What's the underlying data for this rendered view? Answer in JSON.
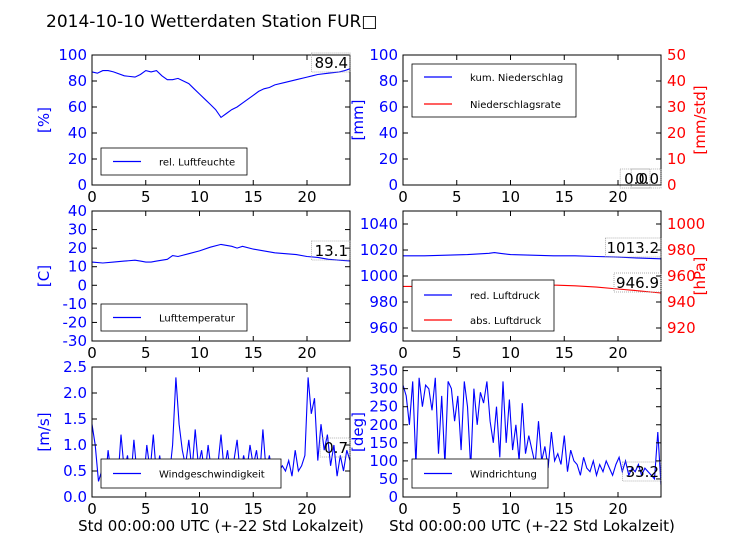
{
  "title": "2014-10-10 Wetterdaten Station FUR□",
  "colors": {
    "primary": "#0000ff",
    "secondary": "#ff0000",
    "axis": "#000000",
    "text": "#000000"
  },
  "chart_data": [
    {
      "id": "humidity",
      "type": "line",
      "xlim": [
        0,
        24
      ],
      "xticks": [
        0,
        5,
        10,
        15,
        20
      ],
      "ylim": [
        0,
        100
      ],
      "yticks": [
        0,
        20,
        40,
        60,
        80,
        100
      ],
      "ylabel": "[%]",
      "readout": "89.4",
      "legend": "bottom-left",
      "series": [
        {
          "name": "rel. Luftfeuchte",
          "color": "#0000ff",
          "x": [
            0,
            0.5,
            1,
            1.5,
            2,
            3,
            4,
            4.5,
            5,
            5.5,
            6,
            6.5,
            7,
            7.5,
            8,
            8.5,
            9,
            9.5,
            10,
            10.5,
            11,
            11.5,
            12,
            12.5,
            13,
            13.5,
            14,
            14.5,
            15,
            15.5,
            16,
            16.5,
            17,
            18,
            19,
            20,
            20.5,
            21,
            22,
            23,
            23.5,
            24
          ],
          "y": [
            87,
            86,
            88,
            88,
            87,
            84,
            83,
            85,
            88,
            87,
            88,
            84,
            81,
            81,
            82,
            80,
            78,
            74,
            70,
            66,
            62,
            58,
            52,
            55,
            58,
            60,
            63,
            66,
            69,
            72,
            74,
            75,
            77,
            79,
            81,
            83,
            84,
            85,
            86,
            87,
            88,
            89.4
          ]
        }
      ]
    },
    {
      "id": "precip",
      "type": "line",
      "xlim": [
        0,
        24
      ],
      "xticks": [
        0,
        5,
        10,
        15,
        20
      ],
      "ylim": [
        0,
        100
      ],
      "yticks": [
        0,
        20,
        40,
        60,
        80,
        100
      ],
      "ylabel": "[mm]",
      "y2lim": [
        0,
        50
      ],
      "y2ticks": [
        0,
        10,
        20,
        30,
        40,
        50
      ],
      "y2label": "[mm/std]",
      "readout": "0.0",
      "readout2": "0.0",
      "legend": "top-left",
      "series": [
        {
          "name": "kum. Niederschlag",
          "color": "#0000ff",
          "axis": "left",
          "x": [
            0,
            24
          ],
          "y": [
            0,
            0
          ]
        },
        {
          "name": "Niederschlagsrate",
          "color": "#ff0000",
          "axis": "right",
          "x": [
            0,
            24
          ],
          "y": [
            0,
            0
          ]
        }
      ]
    },
    {
      "id": "temperature",
      "type": "line",
      "xlim": [
        0,
        24
      ],
      "xticks": [
        0,
        5,
        10,
        15,
        20
      ],
      "ylim": [
        -30,
        40
      ],
      "yticks": [
        -30,
        -20,
        -10,
        0,
        10,
        20,
        30,
        40
      ],
      "ylabel": "[C]",
      "readout": "13.1",
      "legend": "bottom-left",
      "series": [
        {
          "name": "Lufttemperatur",
          "color": "#0000ff",
          "x": [
            0,
            1,
            2,
            3,
            4,
            4.5,
            5,
            5.5,
            6,
            7,
            7.5,
            8,
            9,
            10,
            11,
            12,
            13,
            13.5,
            14,
            15,
            16,
            17,
            18,
            19,
            20,
            21,
            22,
            23,
            24
          ],
          "y": [
            12.5,
            12,
            12.5,
            13,
            13.5,
            13,
            12.5,
            12.5,
            13,
            14,
            16,
            15.5,
            17,
            18.5,
            20.5,
            22,
            21,
            20,
            21,
            19.5,
            18.5,
            17.5,
            17,
            16.5,
            15.5,
            15,
            14,
            13.5,
            13.1
          ]
        }
      ]
    },
    {
      "id": "pressure",
      "type": "line",
      "xlim": [
        0,
        24
      ],
      "xticks": [
        0,
        5,
        10,
        15,
        20
      ],
      "ylim": [
        950,
        1050
      ],
      "yticks": [
        960,
        980,
        1000,
        1020,
        1040
      ],
      "y2lim": [
        910,
        1010
      ],
      "y2ticks": [
        920,
        940,
        960,
        980,
        1000
      ],
      "y2label": "[hPa]",
      "readout": "1013.2",
      "readout2": "946.9",
      "legend": "bottom-left",
      "series": [
        {
          "name": "red. Luftdruck",
          "color": "#0000ff",
          "axis": "left",
          "x": [
            0,
            2,
            4,
            6,
            7,
            8,
            8.5,
            9,
            10,
            12,
            14,
            16,
            18,
            20,
            22,
            24
          ],
          "y": [
            1015.5,
            1015.5,
            1016,
            1016.5,
            1017,
            1017.5,
            1018,
            1017.5,
            1016.5,
            1016,
            1015.5,
            1015.5,
            1015,
            1014.5,
            1013.8,
            1013.2
          ]
        }
      ]
    },
    {
      "id": "wind-speed",
      "type": "line",
      "xlim": [
        0,
        24
      ],
      "xticks": [
        0,
        5,
        10,
        15,
        20
      ],
      "ylim": [
        0,
        2.5
      ],
      "yticks": [
        0.0,
        0.5,
        1.0,
        1.5,
        2.0,
        2.5
      ],
      "ylabel": "[m/s]",
      "xlabel": "Std 00:00:00 UTC (+-22 Std Lokalzeit)",
      "readout": "0.7",
      "legend": "bottom-center",
      "series": [
        {
          "name": "Windgeschwindigkeit",
          "color": "#0000ff",
          "x": [
            0,
            0.3,
            0.6,
            0.9,
            1.2,
            1.5,
            1.8,
            2.1,
            2.4,
            2.7,
            3,
            3.3,
            3.6,
            3.9,
            4.2,
            4.5,
            4.8,
            5.1,
            5.4,
            5.7,
            6,
            6.3,
            6.6,
            6.9,
            7.2,
            7.5,
            7.8,
            8.1,
            8.4,
            8.7,
            9,
            9.3,
            9.6,
            9.9,
            10.2,
            10.5,
            10.8,
            11.1,
            11.4,
            11.7,
            12,
            12.3,
            12.6,
            12.9,
            13.2,
            13.5,
            13.8,
            14.1,
            14.4,
            14.7,
            15,
            15.3,
            15.6,
            15.9,
            16.2,
            16.5,
            16.8,
            17.1,
            17.4,
            17.7,
            18,
            18.3,
            18.6,
            18.9,
            19.2,
            19.5,
            19.8,
            20.1,
            20.4,
            20.7,
            21,
            21.3,
            21.6,
            21.9,
            22.2,
            22.5,
            22.8,
            23.1,
            23.4,
            23.7,
            24
          ],
          "y": [
            1.4,
            1.0,
            0.3,
            0.5,
            0.2,
            0.9,
            0.4,
            0.6,
            0.3,
            1.2,
            0.5,
            0.8,
            0.3,
            1.1,
            0.4,
            0.7,
            0.3,
            1.0,
            0.5,
            1.2,
            0.4,
            0.8,
            0.3,
            0.2,
            0.4,
            1.0,
            2.3,
            1.4,
            0.9,
            0.6,
            1.1,
            0.5,
            1.3,
            0.6,
            0.9,
            0.4,
            1.0,
            0.5,
            0.3,
            0.6,
            1.2,
            0.5,
            0.9,
            0.4,
            0.7,
            1.1,
            0.4,
            0.8,
            0.5,
            1.0,
            0.6,
            0.9,
            0.4,
            1.3,
            0.5,
            0.8,
            0.4,
            0.7,
            0.5,
            0.6,
            0.5,
            0.7,
            0.4,
            0.9,
            0.5,
            0.6,
            0.8,
            2.3,
            1.6,
            1.9,
            0.7,
            1.4,
            0.9,
            1.2,
            0.6,
            1.0,
            0.4,
            0.8,
            0.5,
            0.9,
            0.7
          ]
        }
      ]
    },
    {
      "id": "wind-direction",
      "type": "line",
      "xlim": [
        0,
        24
      ],
      "xticks": [
        0,
        5,
        10,
        15,
        20
      ],
      "ylim": [
        0,
        360
      ],
      "yticks": [
        0,
        50,
        100,
        150,
        200,
        250,
        300,
        350
      ],
      "ylabel": "[deg]",
      "xlabel": "Std 00:00:00 UTC (+-22 Std Lokalzeit)",
      "readout": "33.2",
      "legend": "bottom-left",
      "series": [
        {
          "name": "Windrichtung",
          "color": "#0000ff",
          "x": [
            0,
            0.3,
            0.6,
            0.9,
            1.2,
            1.5,
            1.8,
            2.1,
            2.4,
            2.7,
            3,
            3.3,
            3.6,
            3.9,
            4.2,
            4.5,
            4.8,
            5.1,
            5.4,
            5.7,
            6,
            6.3,
            6.6,
            6.9,
            7.2,
            7.5,
            7.8,
            8.1,
            8.4,
            8.7,
            9,
            9.3,
            9.6,
            9.9,
            10.2,
            10.5,
            10.8,
            11.1,
            11.4,
            11.7,
            12,
            12.3,
            12.6,
            12.9,
            13.2,
            13.5,
            13.8,
            14.1,
            14.4,
            14.7,
            15,
            15.3,
            15.6,
            15.9,
            16.2,
            16.5,
            16.8,
            17.1,
            17.4,
            17.7,
            18,
            18.3,
            18.6,
            18.9,
            19.2,
            19.5,
            19.8,
            20.1,
            20.4,
            20.7,
            21,
            21.3,
            21.6,
            21.9,
            22.2,
            22.5,
            22.8,
            23.1,
            23.4,
            23.7,
            24
          ],
          "y": [
            310,
            280,
            200,
            320,
            90,
            330,
            250,
            310,
            300,
            240,
            330,
            120,
            280,
            90,
            320,
            300,
            210,
            280,
            130,
            320,
            250,
            80,
            300,
            200,
            290,
            260,
            320,
            210,
            150,
            250,
            110,
            320,
            150,
            270,
            130,
            200,
            100,
            260,
            120,
            170,
            130,
            90,
            210,
            100,
            140,
            80,
            180,
            100,
            120,
            90,
            170,
            70,
            130,
            100,
            90,
            60,
            110,
            80,
            70,
            100,
            60,
            90,
            70,
            100,
            80,
            60,
            90,
            110,
            70,
            100,
            60,
            80,
            70,
            90,
            60,
            80,
            70,
            60,
            50,
            180,
            33.2
          ]
        }
      ]
    }
  ]
}
